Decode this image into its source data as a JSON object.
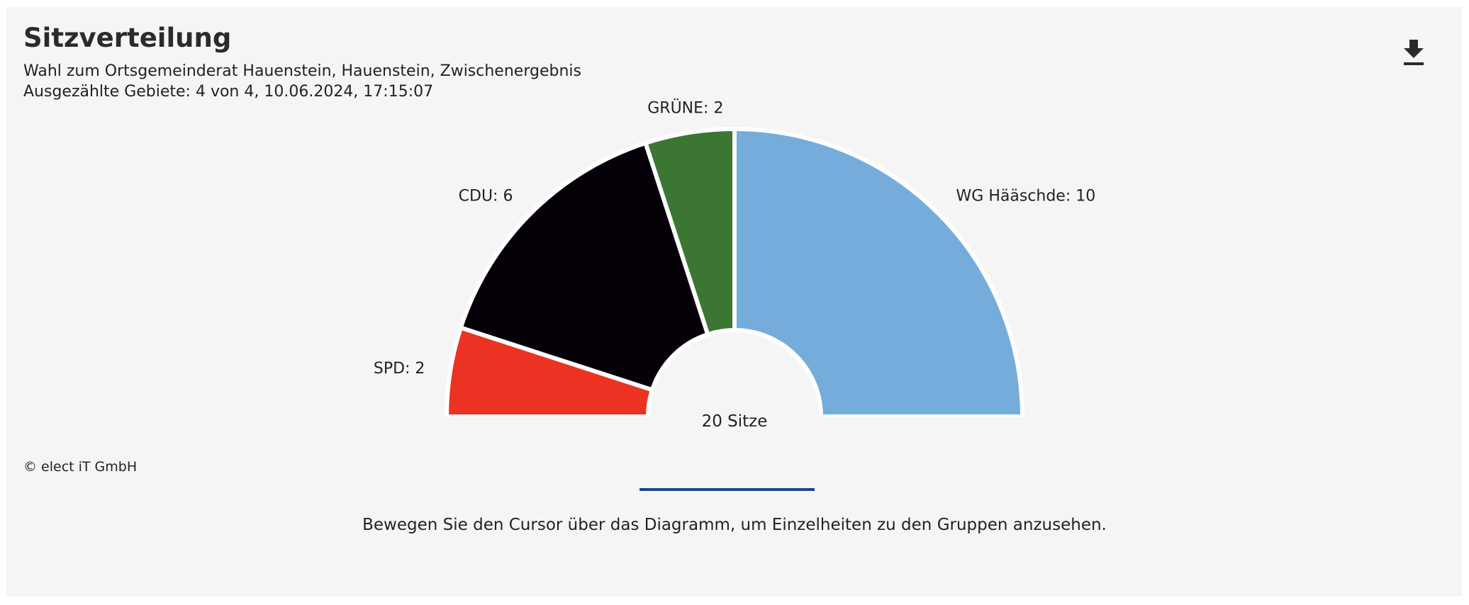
{
  "header": {
    "title": "Sitzverteilung",
    "subtitle_line1": "Wahl zum Ortsgemeinderat Hauenstein, Hauenstein, Zwischenergebnis",
    "subtitle_line2": "Ausgezählte Gebiete: 4 von 4, 10.06.2024, 17:15:07"
  },
  "toolbar": {
    "download_icon": "download-icon"
  },
  "chart_data": {
    "type": "pie",
    "variant": "parliament-half-donut",
    "total_label": "20 Sitze",
    "total": 20,
    "slices": [
      {
        "name": "SPD",
        "label": "SPD: 2",
        "value": 2,
        "color": "#ec3323"
      },
      {
        "name": "CDU",
        "label": "CDU: 6",
        "value": 6,
        "color": "#050008"
      },
      {
        "name": "GRÜNE",
        "label": "GRÜNE: 2",
        "value": 2,
        "color": "#3b7733"
      },
      {
        "name": "WG Hääschde",
        "label": "WG Hääschde: 10",
        "value": 10,
        "color": "#76acdb"
      }
    ]
  },
  "footer": {
    "copyright": "© elect iT GmbH",
    "hint": "Bewegen Sie den Cursor über das Diagramm, um Einzelheiten zu den Gruppen anzusehen."
  },
  "colors": {
    "background": "#f5f5f5",
    "divider": "#1f4486"
  }
}
